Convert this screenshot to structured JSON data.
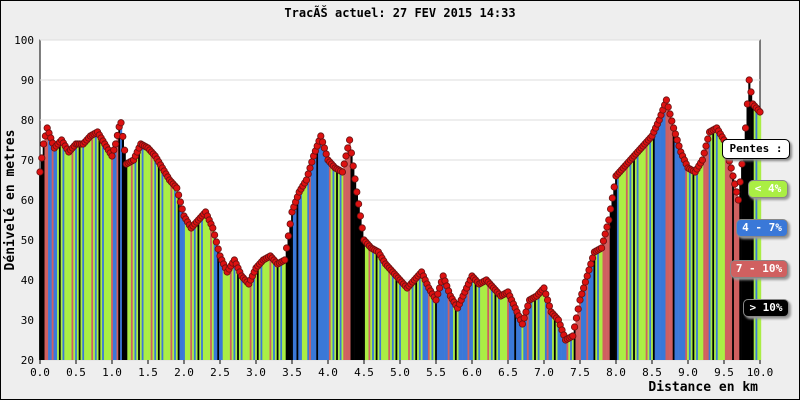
{
  "chart_data": {
    "type": "bar",
    "title": "TracÃŠ actuel: 27 FEV 2015 14:33",
    "ylabel": "Dénivelé en metres",
    "xlabel": "Distance en km",
    "xlim": [
      0,
      10
    ],
    "ylim": [
      20,
      100
    ],
    "x_ticks": [
      "0.0",
      "0.5",
      "1.0",
      "1.5",
      "2.0",
      "2.5",
      "3.0",
      "3.5",
      "4.0",
      "4.5",
      "5.0",
      "5.5",
      "6.0",
      "6.5",
      "7.0",
      "7.5",
      "8.0",
      "8.5",
      "9.0",
      "9.5",
      "10.0"
    ],
    "y_ticks": [
      "20",
      "30",
      "40",
      "50",
      "60",
      "70",
      "80",
      "90",
      "100"
    ],
    "grid": true,
    "legend_position": "right",
    "legend_title": "Pentes :",
    "legend": [
      {
        "label": "< 4%",
        "color": "#aaee44"
      },
      {
        "label": "4 - 7%",
        "color": "#3a78d8"
      },
      {
        "label": "7 - 10%",
        "color": "#d06060"
      },
      {
        "label": "> 10%",
        "color": "#000000"
      }
    ],
    "point_color": "#dd1111",
    "elevation_profile": [
      [
        0.0,
        67
      ],
      [
        0.05,
        74
      ],
      [
        0.1,
        78
      ],
      [
        0.2,
        73
      ],
      [
        0.3,
        75
      ],
      [
        0.4,
        72
      ],
      [
        0.5,
        74
      ],
      [
        0.6,
        74
      ],
      [
        0.7,
        76
      ],
      [
        0.8,
        77
      ],
      [
        0.9,
        74
      ],
      [
        1.0,
        71
      ],
      [
        1.05,
        74
      ],
      [
        1.12,
        80
      ],
      [
        1.2,
        69
      ],
      [
        1.3,
        70
      ],
      [
        1.4,
        74
      ],
      [
        1.5,
        73
      ],
      [
        1.6,
        71
      ],
      [
        1.7,
        68
      ],
      [
        1.8,
        65
      ],
      [
        1.9,
        63
      ],
      [
        2.0,
        56
      ],
      [
        2.1,
        53
      ],
      [
        2.2,
        55
      ],
      [
        2.3,
        57
      ],
      [
        2.4,
        53
      ],
      [
        2.5,
        46
      ],
      [
        2.6,
        42
      ],
      [
        2.7,
        45
      ],
      [
        2.8,
        41
      ],
      [
        2.9,
        39
      ],
      [
        3.0,
        43
      ],
      [
        3.1,
        45
      ],
      [
        3.2,
        46
      ],
      [
        3.3,
        44
      ],
      [
        3.4,
        45
      ],
      [
        3.5,
        57
      ],
      [
        3.6,
        62
      ],
      [
        3.7,
        65
      ],
      [
        3.8,
        71
      ],
      [
        3.9,
        76
      ],
      [
        4.0,
        70
      ],
      [
        4.1,
        68
      ],
      [
        4.2,
        67
      ],
      [
        4.3,
        75
      ],
      [
        4.4,
        62
      ],
      [
        4.5,
        50
      ],
      [
        4.6,
        48
      ],
      [
        4.7,
        47
      ],
      [
        4.8,
        44
      ],
      [
        4.9,
        42
      ],
      [
        5.0,
        40
      ],
      [
        5.1,
        38
      ],
      [
        5.2,
        40
      ],
      [
        5.3,
        42
      ],
      [
        5.4,
        38
      ],
      [
        5.5,
        35
      ],
      [
        5.6,
        41
      ],
      [
        5.7,
        36
      ],
      [
        5.8,
        33
      ],
      [
        5.9,
        37
      ],
      [
        6.0,
        41
      ],
      [
        6.1,
        39
      ],
      [
        6.2,
        40
      ],
      [
        6.3,
        38
      ],
      [
        6.4,
        36
      ],
      [
        6.5,
        37
      ],
      [
        6.6,
        33
      ],
      [
        6.7,
        29
      ],
      [
        6.8,
        35
      ],
      [
        6.9,
        36
      ],
      [
        7.0,
        38
      ],
      [
        7.1,
        32
      ],
      [
        7.2,
        30
      ],
      [
        7.3,
        25
      ],
      [
        7.4,
        26
      ],
      [
        7.5,
        35
      ],
      [
        7.6,
        41
      ],
      [
        7.7,
        47
      ],
      [
        7.8,
        48
      ],
      [
        7.9,
        55
      ],
      [
        8.0,
        66
      ],
      [
        8.1,
        68
      ],
      [
        8.2,
        70
      ],
      [
        8.3,
        72
      ],
      [
        8.4,
        74
      ],
      [
        8.5,
        76
      ],
      [
        8.6,
        80
      ],
      [
        8.7,
        85
      ],
      [
        8.8,
        78
      ],
      [
        8.9,
        72
      ],
      [
        9.0,
        68
      ],
      [
        9.1,
        67
      ],
      [
        9.2,
        70
      ],
      [
        9.3,
        77
      ],
      [
        9.4,
        78
      ],
      [
        9.5,
        75
      ],
      [
        9.6,
        68
      ],
      [
        9.7,
        60
      ],
      [
        9.8,
        78
      ],
      [
        9.85,
        90
      ],
      [
        9.9,
        84
      ],
      [
        10.0,
        82
      ]
    ]
  }
}
